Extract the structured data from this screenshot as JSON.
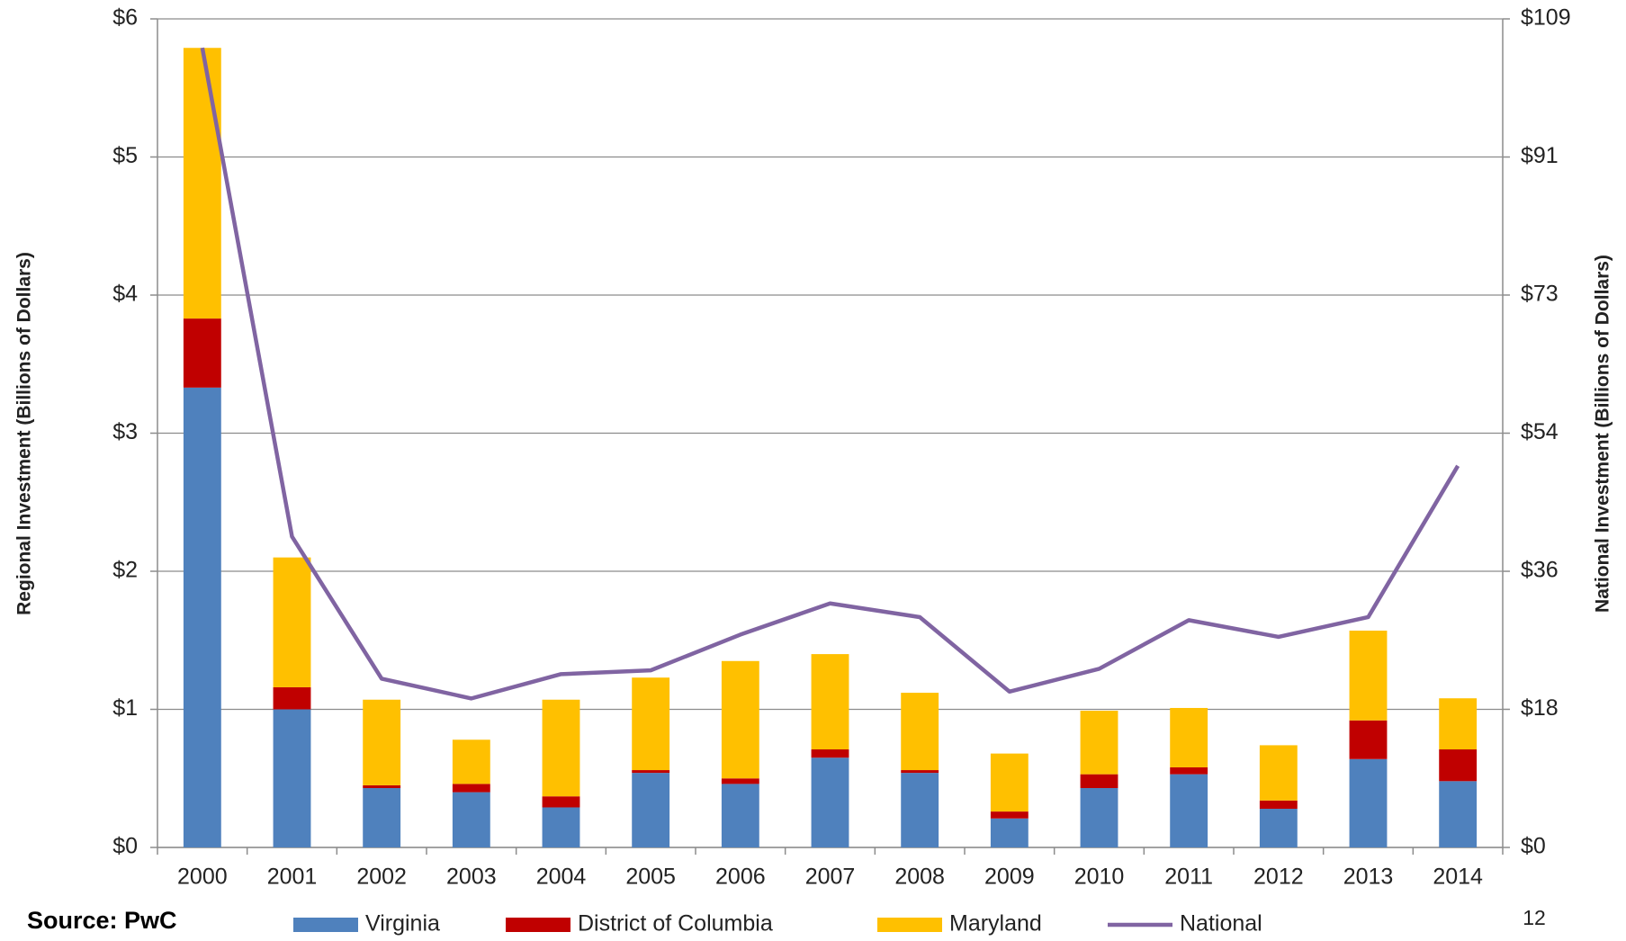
{
  "chart_data": {
    "type": "bar",
    "y_label": "Regional Investment (Billions of Dollars)",
    "y2_label": "National Investment (Billions of Dollars)",
    "source": "Source: PwC",
    "page_number": "12",
    "categories": [
      "2000",
      "2001",
      "2002",
      "2003",
      "2004",
      "2005",
      "2006",
      "2007",
      "2008",
      "2009",
      "2010",
      "2011",
      "2012",
      "2013",
      "2014"
    ],
    "series": [
      {
        "name": "Virginia",
        "color": "#4f81bd",
        "type": "bar",
        "values": [
          3.33,
          1.0,
          0.43,
          0.4,
          0.29,
          0.54,
          0.46,
          0.65,
          0.54,
          0.21,
          0.43,
          0.53,
          0.28,
          0.64,
          0.48
        ]
      },
      {
        "name": "District of Columbia",
        "color": "#c00000",
        "type": "bar",
        "values": [
          0.5,
          0.16,
          0.02,
          0.06,
          0.08,
          0.02,
          0.04,
          0.06,
          0.02,
          0.05,
          0.1,
          0.05,
          0.06,
          0.28,
          0.23
        ]
      },
      {
        "name": "Maryland",
        "color": "#ffc000",
        "type": "bar",
        "values": [
          1.96,
          0.94,
          0.62,
          0.32,
          0.7,
          0.67,
          0.85,
          0.69,
          0.56,
          0.42,
          0.46,
          0.43,
          0.4,
          0.65,
          0.37
        ]
      },
      {
        "name": "National",
        "color": "#8064a2",
        "type": "line",
        "axis": "y2",
        "values": [
          105.2,
          40.9,
          22.2,
          19.6,
          22.8,
          23.3,
          28.0,
          32.1,
          30.3,
          20.5,
          23.5,
          29.9,
          27.7,
          30.3,
          50.2
        ]
      }
    ],
    "ylim": [
      0,
      6
    ],
    "yticks": [
      {
        "value": 0,
        "label": "$0"
      },
      {
        "value": 1,
        "label": "$1"
      },
      {
        "value": 2,
        "label": "$2"
      },
      {
        "value": 3,
        "label": "$3"
      },
      {
        "value": 4,
        "label": "$4"
      },
      {
        "value": 5,
        "label": "$5"
      },
      {
        "value": 6,
        "label": "$6"
      }
    ],
    "y2lim": [
      0,
      109
    ],
    "y2ticks": [
      {
        "value": 0,
        "label": "$0"
      },
      {
        "value": 18.17,
        "label": "$18"
      },
      {
        "value": 36.33,
        "label": "$36"
      },
      {
        "value": 54.5,
        "label": "$54"
      },
      {
        "value": 72.67,
        "label": "$73"
      },
      {
        "value": 90.83,
        "label": "$91"
      },
      {
        "value": 109,
        "label": "$109"
      }
    ],
    "grid": true,
    "stacked": true,
    "legend": "bottom"
  }
}
